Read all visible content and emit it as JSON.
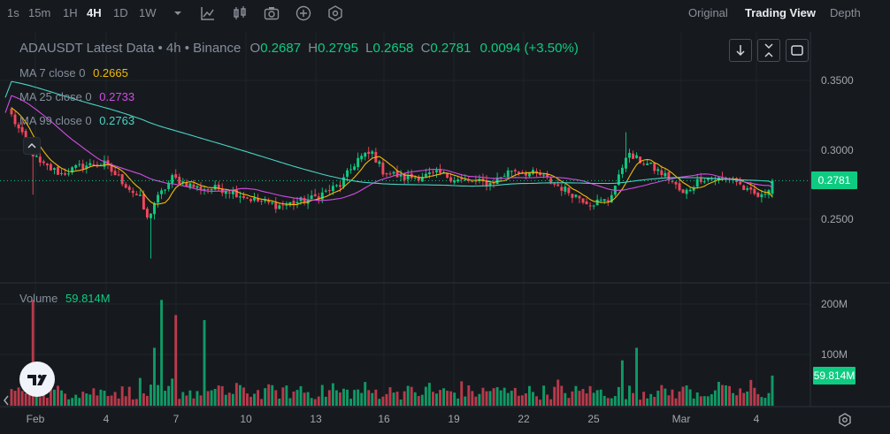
{
  "toolbar": {
    "timeframes": [
      "1s",
      "15m",
      "1H",
      "4H",
      "1D",
      "1W"
    ],
    "active_timeframe": "4H",
    "icons": [
      "chevron-down-icon",
      "indicator-icon",
      "candle-type-icon",
      "screenshot-icon",
      "add-icon",
      "settings-hex-icon"
    ],
    "views": [
      "Original",
      "Trading View",
      "Depth"
    ],
    "active_view": "Trading View"
  },
  "legend": {
    "title": "ADAUSDT Latest Data • 4h • Binance",
    "o_label": "O",
    "o": "0.2687",
    "h_label": "H",
    "h": "0.2795",
    "l_label": "L",
    "l": "0.2658",
    "c_label": "C",
    "c": "0.2781",
    "change": "0.0094 (+3.50%)",
    "ma7_label": "MA 7 close 0",
    "ma7": "0.2665",
    "ma25_label": "MA 25 close 0",
    "ma25": "0.2733",
    "ma99_label": "MA 99 close 0",
    "ma99": "0.2763",
    "volume_label": "Volume",
    "volume": "59.814M"
  },
  "price_axis": [
    "0.3500",
    "0.3000",
    "0.2500"
  ],
  "volume_axis": [
    "200M",
    "100M"
  ],
  "last_price_tag": "0.2781",
  "last_volume_tag": "59.814M",
  "date_labels": [
    "Feb",
    "4",
    "7",
    "10",
    "13",
    "16",
    "19",
    "22",
    "25",
    "Mar",
    "4"
  ],
  "colors": {
    "up": "#0ecb81",
    "down": "#f6465d",
    "ma7": "#f0b90b",
    "ma25": "#d24ce4",
    "ma99": "#4ad3c4",
    "bg": "#161a1e"
  },
  "chart_data": {
    "type": "candlestick",
    "title": "ADAUSDT Latest Data • 4h • Binance",
    "x_ticks": [
      "Feb",
      "4",
      "7",
      "10",
      "13",
      "16",
      "19",
      "22",
      "25",
      "Mar",
      "4"
    ],
    "price_range": [
      0.22,
      0.355
    ],
    "volume_range": [
      0,
      220000000
    ],
    "price_anchors_by_candle": [
      [
        0,
        0.325
      ],
      [
        4,
        0.305
      ],
      [
        8,
        0.29
      ],
      [
        14,
        0.283
      ],
      [
        20,
        0.289
      ],
      [
        26,
        0.29
      ],
      [
        32,
        0.275
      ],
      [
        36,
        0.265
      ],
      [
        38,
        0.25
      ],
      [
        40,
        0.262
      ],
      [
        45,
        0.28
      ],
      [
        52,
        0.273
      ],
      [
        60,
        0.272
      ],
      [
        68,
        0.264
      ],
      [
        75,
        0.26
      ],
      [
        84,
        0.265
      ],
      [
        92,
        0.275
      ],
      [
        97,
        0.294
      ],
      [
        101,
        0.298
      ],
      [
        104,
        0.285
      ],
      [
        110,
        0.28
      ],
      [
        120,
        0.283
      ],
      [
        126,
        0.278
      ],
      [
        134,
        0.276
      ],
      [
        140,
        0.286
      ],
      [
        148,
        0.282
      ],
      [
        156,
        0.27
      ],
      [
        162,
        0.262
      ],
      [
        167,
        0.264
      ],
      [
        170,
        0.28
      ],
      [
        172,
        0.297
      ],
      [
        178,
        0.29
      ],
      [
        184,
        0.28
      ],
      [
        188,
        0.268
      ],
      [
        193,
        0.28
      ],
      [
        199,
        0.279
      ],
      [
        202,
        0.28
      ],
      [
        206,
        0.27
      ],
      [
        210,
        0.266
      ],
      [
        213,
        0.278
      ]
    ],
    "volume_spikes": [
      [
        6,
        210000000
      ],
      [
        42,
        210000000
      ],
      [
        46,
        180000000
      ],
      [
        54,
        170000000
      ],
      [
        40,
        115000000
      ],
      [
        175,
        115000000
      ],
      [
        171,
        90000000
      ]
    ],
    "ma7_last": 0.2665,
    "ma25_last": 0.2733,
    "ma99_last": 0.2763,
    "last_close": 0.2781,
    "last_volume": "59.814M"
  }
}
